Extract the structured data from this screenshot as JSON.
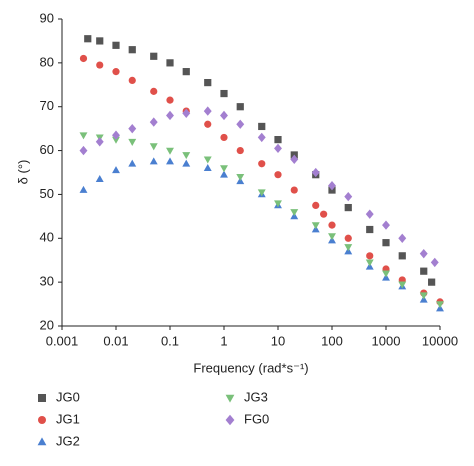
{
  "chart_data": {
    "type": "scatter",
    "xlabel": "Frequency (rad*s⁻¹)",
    "ylabel": "δ (°)",
    "xscale": "log",
    "xlim": [
      0.001,
      10000
    ],
    "xticks": [
      0.001,
      0.01,
      0.1,
      1,
      10,
      100,
      1000,
      10000
    ],
    "ylim": [
      20,
      90
    ],
    "yticks": [
      20,
      30,
      40,
      50,
      60,
      70,
      80,
      90
    ],
    "grid": false,
    "legend": "bottom",
    "series": [
      {
        "name": "JG0",
        "color": "#555555",
        "marker": "square",
        "x": [
          0.003,
          0.005,
          0.01,
          0.02,
          0.05,
          0.1,
          0.2,
          0.5,
          1,
          2,
          5,
          10,
          20,
          50,
          100,
          200,
          500,
          1000,
          2000,
          5000,
          7000
        ],
        "values": [
          85.5,
          85,
          84,
          83,
          81.5,
          80,
          78,
          75.5,
          73,
          70,
          65.5,
          62.5,
          59,
          54.5,
          51,
          47,
          42,
          39,
          36,
          32.5,
          30
        ]
      },
      {
        "name": "JG1",
        "color": "#e0504a",
        "marker": "circle",
        "x": [
          0.0025,
          0.005,
          0.01,
          0.02,
          0.05,
          0.1,
          0.2,
          0.5,
          1,
          2,
          5,
          10,
          20,
          50,
          70,
          100,
          200,
          500,
          1000,
          2000,
          5000,
          10000
        ],
        "values": [
          81,
          79.5,
          78,
          76,
          73.5,
          71.5,
          69,
          66,
          63,
          60,
          57,
          54.5,
          51,
          47.5,
          45.5,
          43,
          40,
          36,
          33,
          30.5,
          27.5,
          25.5
        ]
      },
      {
        "name": "JG2",
        "color": "#4a7fd0",
        "marker": "triangle-up",
        "x": [
          0.0025,
          0.005,
          0.01,
          0.02,
          0.05,
          0.1,
          0.2,
          0.5,
          1,
          2,
          5,
          10,
          20,
          50,
          100,
          200,
          500,
          1000,
          2000,
          5000,
          10000
        ],
        "values": [
          51,
          53.5,
          55.5,
          57,
          57.5,
          57.5,
          57,
          56,
          54.5,
          53,
          50,
          47.5,
          45,
          42,
          39.5,
          37,
          33.5,
          31,
          29,
          26,
          24
        ]
      },
      {
        "name": "JG3",
        "color": "#7ac07a",
        "marker": "triangle-down",
        "x": [
          0.0025,
          0.005,
          0.01,
          0.02,
          0.05,
          0.1,
          0.2,
          0.5,
          1,
          2,
          5,
          10,
          20,
          50,
          100,
          200,
          500,
          1000,
          2000,
          5000,
          10000
        ],
        "values": [
          63.5,
          63,
          62.5,
          62,
          61,
          60,
          59,
          58,
          56,
          54,
          50.5,
          48,
          46,
          43,
          40.5,
          38,
          34.5,
          32,
          29.5,
          27,
          25
        ]
      },
      {
        "name": "FG0",
        "color": "#a37fd0",
        "marker": "diamond",
        "x": [
          0.0025,
          0.005,
          0.01,
          0.02,
          0.05,
          0.1,
          0.2,
          0.5,
          1,
          2,
          5,
          10,
          20,
          50,
          100,
          200,
          500,
          1000,
          2000,
          5000,
          8000
        ],
        "values": [
          60,
          62,
          63.5,
          65,
          66.5,
          68,
          68.5,
          69,
          68,
          66,
          63,
          60.5,
          58,
          55,
          52,
          49.5,
          45.5,
          43,
          40,
          36.5,
          34.5
        ]
      }
    ]
  }
}
